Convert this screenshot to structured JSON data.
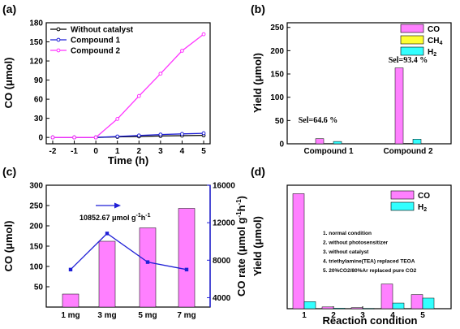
{
  "panels": [
    {
      "id": "a",
      "label": "(a)"
    },
    {
      "id": "b",
      "label": "(b)"
    },
    {
      "id": "c",
      "label": "(c)"
    },
    {
      "id": "d",
      "label": "(d)"
    }
  ],
  "chart_data": [
    {
      "panel": "a",
      "type": "line",
      "xlabel": "Time (h)",
      "ylabel": "CO (μmol)",
      "xlim": [
        -2.3,
        5.3
      ],
      "ylim": [
        -10,
        180
      ],
      "xticks": [
        -2,
        -1,
        0,
        1,
        2,
        3,
        4,
        5
      ],
      "yticks": [
        0,
        30,
        60,
        90,
        120,
        150,
        180
      ],
      "x": [
        -2,
        -1,
        0,
        1,
        2,
        3,
        4,
        5
      ],
      "legend_position": "top-left",
      "series": [
        {
          "name": "Without catalyst",
          "color": "#000000",
          "marker": "circle-open",
          "values": [
            0,
            0,
            0,
            0.8,
            1.5,
            2.2,
            2.8,
            3.2
          ]
        },
        {
          "name": "Compound 1",
          "color": "#1f1fd6",
          "marker": "circle-open",
          "values": [
            0,
            0,
            0,
            1.5,
            3,
            4.5,
            5.5,
            6.5
          ]
        },
        {
          "name": "Compound 2",
          "color": "#ff33ff",
          "marker": "circle-open",
          "values": [
            0,
            0,
            0,
            29,
            65,
            100,
            136,
            162
          ]
        }
      ]
    },
    {
      "panel": "b",
      "type": "bar",
      "xlabel": "",
      "ylabel": "Yield (μmol)",
      "ylim": [
        0,
        260
      ],
      "yticks": [
        0,
        50,
        100,
        150,
        200,
        250
      ],
      "categories": [
        "Compound 1",
        "Compound 2"
      ],
      "legend_position": "top-right",
      "series": [
        {
          "name": "CO",
          "color": "#ff80ff",
          "values": [
            11,
            163
          ]
        },
        {
          "name": "CH",
          "sub": "4",
          "color": "#ffff33",
          "values": [
            0.6,
            0.8
          ]
        },
        {
          "name": "H",
          "sub": "2",
          "color": "#33ffff",
          "values": [
            5,
            10
          ]
        }
      ],
      "annotations": [
        "Sel=64.6 %",
        "Sel=93.4 %"
      ]
    },
    {
      "panel": "c",
      "type": "bar",
      "xlabel": "",
      "ylabel": "CO (μmol)",
      "ylim": [
        0,
        300
      ],
      "yticks": [
        50,
        100,
        150,
        200,
        250,
        300
      ],
      "categories": [
        "1 mg",
        "3 mg",
        "5 mg",
        "7 mg"
      ],
      "series": [
        {
          "name": "CO",
          "color": "#ff80ff",
          "values": [
            32,
            162,
            195,
            243
          ]
        }
      ],
      "secondary": {
        "type": "line",
        "color": "#1f1fd6",
        "ylabel": "CO rate (μmol g",
        "ylabel_sup1": "-1",
        "ylabel_mid": "h",
        "ylabel_sup2": "-1",
        "ylabel_end": ")",
        "ylim": [
          3000,
          16000
        ],
        "yticks": [
          4000,
          8000,
          12000,
          16000
        ],
        "values": [
          7000,
          10852.67,
          7800,
          7000
        ]
      },
      "annotation": {
        "text": "10852.67 μmol g",
        "sup1": "-1",
        "mid": "h",
        "sup2": "-1"
      }
    },
    {
      "panel": "d",
      "type": "bar",
      "xlabel": "Reaction condition",
      "ylabel": "Yield (μmol)",
      "ylim": [
        0,
        175
      ],
      "categories": [
        "1",
        "2",
        "3",
        "4",
        "5"
      ],
      "legend_position": "top-right",
      "series": [
        {
          "name": "CO",
          "color": "#ff80ff",
          "values": [
            163,
            2.5,
            1.5,
            35,
            20
          ]
        },
        {
          "name": "H",
          "sub": "2",
          "color": "#33ffff",
          "values": [
            10,
            0.8,
            0.5,
            8,
            15
          ]
        }
      ],
      "conditions": [
        "1. normal condition",
        "2. without photosensitizer",
        "3. without catalyst",
        "4. triethylamine(TEA) replaced TEOA",
        "5. 20%CO2/80%Ar replaced pure CO2"
      ]
    }
  ]
}
